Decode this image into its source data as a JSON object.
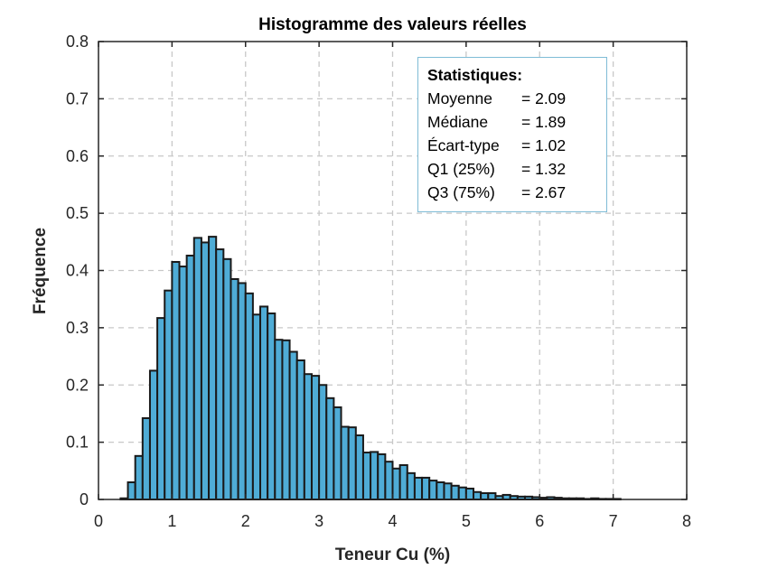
{
  "chart_data": {
    "type": "bar",
    "title": "Histogramme des valeurs réelles",
    "xlabel": "Teneur Cu (%)",
    "ylabel": "Fréquence",
    "xlim": [
      0,
      8
    ],
    "ylim": [
      0,
      0.8
    ],
    "xticks": [
      "0",
      "1",
      "2",
      "3",
      "4",
      "5",
      "6",
      "7",
      "8"
    ],
    "yticks": [
      "0",
      "0.1",
      "0.2",
      "0.3",
      "0.4",
      "0.5",
      "0.6",
      "0.7",
      "0.8"
    ],
    "grid": true,
    "bin_start": 0.3,
    "bin_width": 0.1,
    "bar_color": "#4FACD6",
    "edge_color": "#1a1a1a",
    "values": [
      0.002,
      0.03,
      0.076,
      0.142,
      0.225,
      0.317,
      0.365,
      0.415,
      0.407,
      0.426,
      0.457,
      0.449,
      0.459,
      0.437,
      0.42,
      0.385,
      0.378,
      0.36,
      0.323,
      0.337,
      0.325,
      0.279,
      0.278,
      0.258,
      0.243,
      0.219,
      0.216,
      0.2,
      0.177,
      0.161,
      0.127,
      0.126,
      0.112,
      0.082,
      0.083,
      0.079,
      0.066,
      0.054,
      0.06,
      0.046,
      0.038,
      0.038,
      0.033,
      0.03,
      0.028,
      0.024,
      0.021,
      0.019,
      0.013,
      0.011,
      0.011,
      0.006,
      0.008,
      0.006,
      0.005,
      0.005,
      0.004,
      0.003,
      0.004,
      0.003,
      0.002,
      0.002,
      0.002,
      0.001,
      0.002,
      0.001,
      0.001,
      0.001
    ],
    "annotation": {
      "title": "Statistiques:",
      "lines": [
        {
          "label": "Moyenne",
          "value": "= 2.09"
        },
        {
          "label": "Médiane",
          "value": "= 1.89"
        },
        {
          "label": "Écart-type",
          "value": "= 1.02"
        },
        {
          "label": "Q1 (25%)",
          "value": "= 1.32"
        },
        {
          "label": "Q3 (75%)",
          "value": "= 2.67"
        }
      ]
    }
  }
}
